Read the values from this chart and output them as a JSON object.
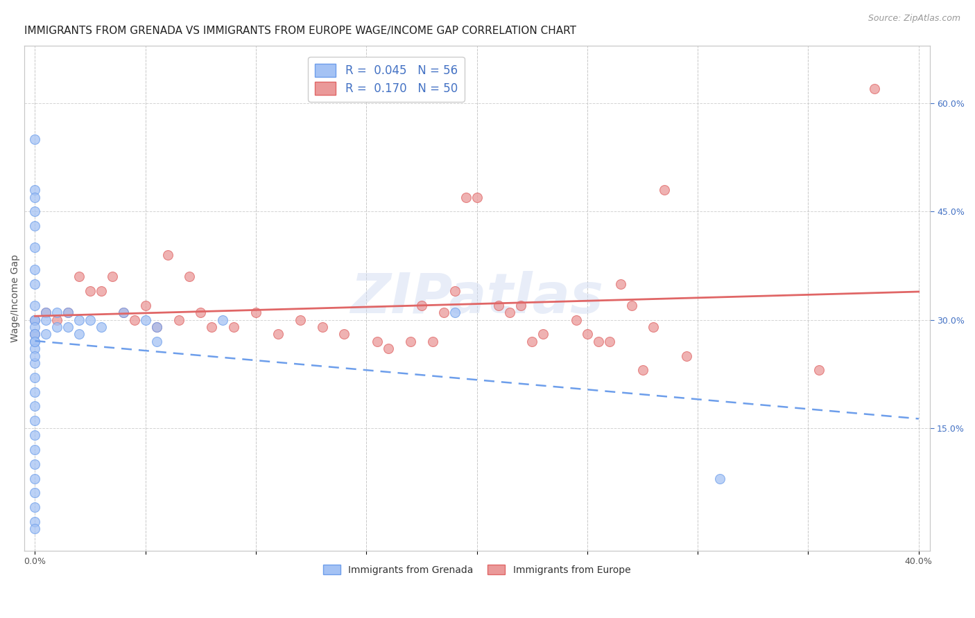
{
  "title": "IMMIGRANTS FROM GRENADA VS IMMIGRANTS FROM EUROPE WAGE/INCOME GAP CORRELATION CHART",
  "source": "Source: ZipAtlas.com",
  "ylabel": "Wage/Income Gap",
  "xlim": [
    -0.005,
    0.405
  ],
  "ylim": [
    -0.02,
    0.68
  ],
  "right_yticks": [
    0.15,
    0.3,
    0.45,
    0.6
  ],
  "right_yticklabels": [
    "15.0%",
    "30.0%",
    "45.0%",
    "60.0%"
  ],
  "xticks": [
    0.0,
    0.05,
    0.1,
    0.15,
    0.2,
    0.25,
    0.3,
    0.35,
    0.4
  ],
  "xticklabels": [
    "0.0%",
    "",
    "",
    "",
    "",
    "",
    "",
    "",
    "40.0%"
  ],
  "blue_color": "#a4c2f4",
  "blue_edge_color": "#6d9eeb",
  "pink_color": "#ea9999",
  "pink_edge_color": "#e06666",
  "blue_line_color": "#6d9eeb",
  "pink_line_color": "#e06666",
  "grenada_x": [
    0.0,
    0.0,
    0.0,
    0.0,
    0.0,
    0.0,
    0.0,
    0.0,
    0.0,
    0.0,
    0.0,
    0.0,
    0.0,
    0.0,
    0.0,
    0.0,
    0.0,
    0.0,
    0.0,
    0.0,
    0.0,
    0.0,
    0.0,
    0.0,
    0.0,
    0.0,
    0.0,
    0.0,
    0.0,
    0.0,
    0.0,
    0.005,
    0.005,
    0.005,
    0.01,
    0.01,
    0.015,
    0.015,
    0.02,
    0.02,
    0.025,
    0.03,
    0.04,
    0.05,
    0.055,
    0.055,
    0.085,
    0.19,
    0.31
  ],
  "grenada_y": [
    0.55,
    0.48,
    0.47,
    0.45,
    0.43,
    0.4,
    0.37,
    0.35,
    0.32,
    0.3,
    0.28,
    0.27,
    0.26,
    0.24,
    0.22,
    0.2,
    0.18,
    0.16,
    0.14,
    0.12,
    0.1,
    0.08,
    0.06,
    0.04,
    0.02,
    0.01,
    0.3,
    0.29,
    0.28,
    0.27,
    0.25,
    0.31,
    0.3,
    0.28,
    0.31,
    0.29,
    0.31,
    0.29,
    0.3,
    0.28,
    0.3,
    0.29,
    0.31,
    0.3,
    0.29,
    0.27,
    0.3,
    0.31,
    0.08
  ],
  "europe_x": [
    0.0,
    0.0,
    0.005,
    0.01,
    0.015,
    0.02,
    0.025,
    0.03,
    0.035,
    0.04,
    0.045,
    0.05,
    0.055,
    0.06,
    0.065,
    0.07,
    0.075,
    0.08,
    0.09,
    0.1,
    0.11,
    0.12,
    0.13,
    0.14,
    0.155,
    0.16,
    0.17,
    0.175,
    0.18,
    0.185,
    0.19,
    0.195,
    0.2,
    0.21,
    0.215,
    0.22,
    0.225,
    0.23,
    0.245,
    0.25,
    0.255,
    0.26,
    0.265,
    0.27,
    0.275,
    0.28,
    0.285,
    0.295,
    0.355,
    0.38
  ],
  "europe_y": [
    0.3,
    0.28,
    0.31,
    0.3,
    0.31,
    0.36,
    0.34,
    0.34,
    0.36,
    0.31,
    0.3,
    0.32,
    0.29,
    0.39,
    0.3,
    0.36,
    0.31,
    0.29,
    0.29,
    0.31,
    0.28,
    0.3,
    0.29,
    0.28,
    0.27,
    0.26,
    0.27,
    0.32,
    0.27,
    0.31,
    0.34,
    0.47,
    0.47,
    0.32,
    0.31,
    0.32,
    0.27,
    0.28,
    0.3,
    0.28,
    0.27,
    0.27,
    0.35,
    0.32,
    0.23,
    0.29,
    0.48,
    0.25,
    0.23,
    0.62
  ],
  "title_fontsize": 11,
  "source_fontsize": 9,
  "axis_label_fontsize": 10,
  "tick_fontsize": 9,
  "legend_fontsize": 12,
  "marker_size": 100,
  "background_color": "#ffffff",
  "watermark_text": "ZIPatlas",
  "watermark_color": "#ccd9f0",
  "watermark_alpha": 0.45,
  "watermark_fontsize": 58,
  "grid_color": "#c8c8c8",
  "spine_color": "#c8c8c8"
}
